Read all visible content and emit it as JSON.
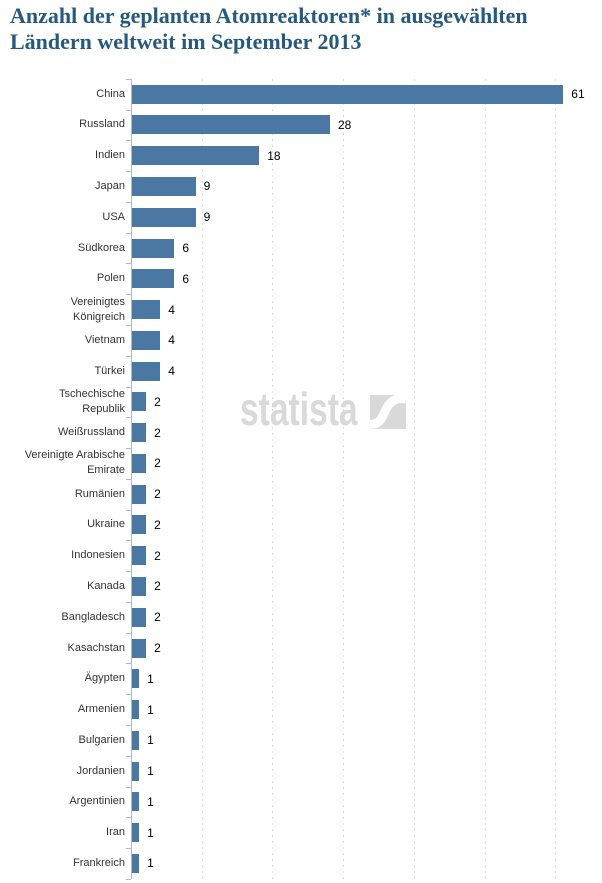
{
  "title": "Anzahl der geplanten Atomreaktoren* in ausgewählten Ländern weltweit im September 2013",
  "watermark": {
    "text": "statista",
    "logo_icon": "statista-logo"
  },
  "colors": {
    "bar": "#4b78a3",
    "title": "#255a7e",
    "axis": "#a9bccb",
    "grid": "#dcdcdc",
    "watermark": "#d9d9d9",
    "label": "#333333",
    "value": "#000000"
  },
  "chart_data": {
    "type": "bar",
    "orientation": "horizontal",
    "title": "Anzahl der geplanten Atomreaktoren* in ausgewählten Ländern weltweit im September 2013",
    "categories": [
      "China",
      "Russland",
      "Indien",
      "Japan",
      "USA",
      "Südkorea",
      "Polen",
      "Vereinigtes Königreich",
      "Vietnam",
      "Türkei",
      "Tschechische Republik",
      "Weißrussland",
      "Vereinigte Arabische Emirate",
      "Rumänien",
      "Ukraine",
      "Indonesien",
      "Kanada",
      "Bangladesch",
      "Kasachstan",
      "Ägypten",
      "Armenien",
      "Bulgarien",
      "Jordanien",
      "Argentinien",
      "Iran",
      "Frankreich"
    ],
    "values": [
      61,
      28,
      18,
      9,
      9,
      6,
      6,
      4,
      4,
      4,
      2,
      2,
      2,
      2,
      2,
      2,
      2,
      2,
      2,
      1,
      1,
      1,
      1,
      1,
      1,
      1
    ],
    "xlim": [
      0,
      62
    ],
    "grid_interval": 10,
    "grid": true,
    "legend": false,
    "value_labels": true
  }
}
